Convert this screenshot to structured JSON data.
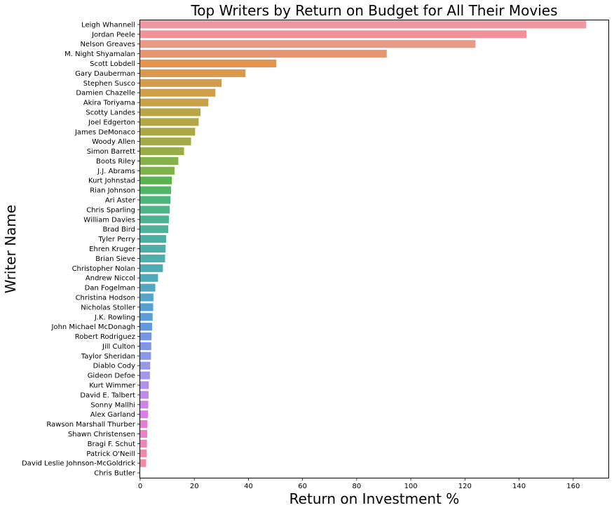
{
  "chart_data": {
    "type": "bar",
    "orientation": "horizontal",
    "title": "Top Writers by Return on Budget for All Their Movies",
    "xlabel": "Return on Investment %",
    "ylabel": "Writer Name",
    "xlim": [
      0,
      173
    ],
    "xticks": [
      0,
      20,
      40,
      60,
      80,
      100,
      120,
      140,
      160
    ],
    "grid": false,
    "legend": "none",
    "categories": [
      "Leigh Whannell",
      "Jordan Peele",
      "Nelson Greaves",
      "M. Night Shyamalan",
      "Scott Lobdell",
      "Gary Dauberman",
      "Stephen Susco",
      "Damien Chazelle",
      "Akira Toriyama",
      "Scotty Landes",
      "Joel Edgerton",
      "James DeMonaco",
      "Woody Allen",
      "Simon Barrett",
      "Boots Riley",
      "J.J. Abrams",
      "Kurt Johnstad",
      "Rian Johnson",
      "Ari Aster",
      "Chris Sparling",
      "William Davies",
      "Brad Bird",
      "Tyler Perry",
      "Ehren Kruger",
      "Brian Sieve",
      "Christopher Nolan",
      "Andrew Niccol",
      "Dan Fogelman",
      "Christina Hodson",
      "Nicholas Stoller",
      "J.K. Rowling",
      "John Michael McDonagh",
      "Robert Rodriguez",
      "Jill Culton",
      "Taylor Sheridan",
      "Diablo Cody",
      "Gideon Defoe",
      "Kurt Wimmer",
      "David E. Talbert",
      "Sonny Mallhi",
      "Alex Garland",
      "Rawson Marshall Thurber",
      "Shawn Christensen",
      "Bragi F. Schut",
      "Patrick O'Neill",
      "David Leslie Johnson-McGoldrick",
      "Chris Butler"
    ],
    "values": [
      164.8,
      142.7,
      123.9,
      91.1,
      50.3,
      38.9,
      30.1,
      27.8,
      25.2,
      22.3,
      21.6,
      20.3,
      18.8,
      16.2,
      14.1,
      12.7,
      11.7,
      11.4,
      11.2,
      10.9,
      10.6,
      10.4,
      9.6,
      9.4,
      9.2,
      8.4,
      6.6,
      5.6,
      4.9,
      4.8,
      4.6,
      4.4,
      4.2,
      4.1,
      4.0,
      3.7,
      3.6,
      3.2,
      3.1,
      3.0,
      2.9,
      2.7,
      2.6,
      2.5,
      2.4,
      2.2,
      0.0
    ],
    "colors": [
      "#ef98a0",
      "#ef929a",
      "#e99a86",
      "#e6966e",
      "#e6934d",
      "#d9994d",
      "#d39c4a",
      "#cf9e48",
      "#c6a148",
      "#b9a548",
      "#b2a647",
      "#aca847",
      "#a2a847",
      "#98ac48",
      "#86b04b",
      "#7cb14c",
      "#5bb350",
      "#52b466",
      "#4fb479",
      "#4eb387",
      "#4eb291",
      "#4eb199",
      "#4eb0a2",
      "#4eafa8",
      "#4eaeab",
      "#4dacb1",
      "#4faab8",
      "#52a7bf",
      "#55a4c7",
      "#58a1cf",
      "#5c9ed7",
      "#6498de",
      "#7596e1",
      "#8197e5",
      "#8c97e7",
      "#9898e8",
      "#a497e7",
      "#b291e6",
      "#c08be6",
      "#cb85e6",
      "#d77fe5",
      "#e27ed3",
      "#e981c4",
      "#ec85b7",
      "#ee89ac",
      "#ee8ca3",
      "#ee8fa0"
    ]
  }
}
